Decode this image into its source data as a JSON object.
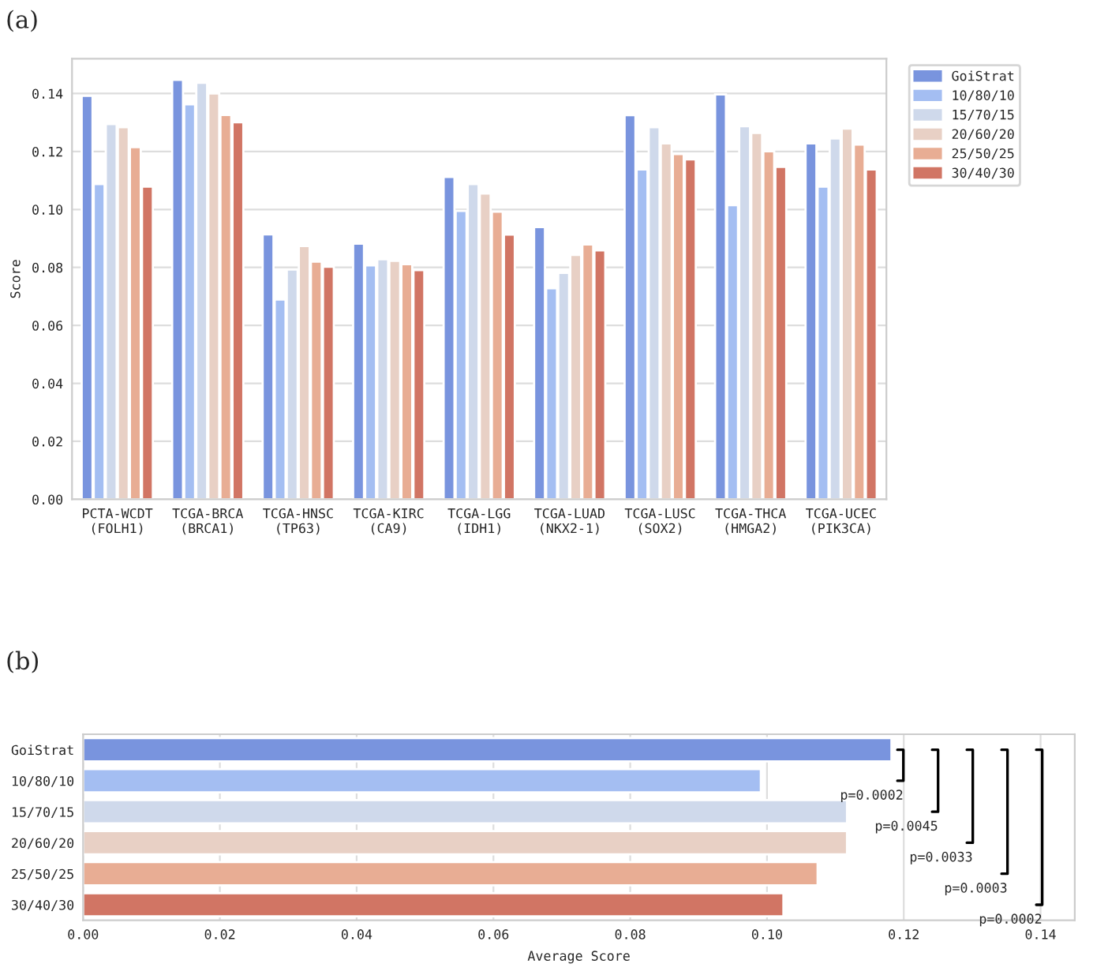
{
  "chart_data": [
    {
      "type": "bar",
      "title": "(a)",
      "ylabel": "Score",
      "categories": [
        "PCTA-WCDT\n(FOLH1)",
        "TCGA-BRCA\n(BRCA1)",
        "TCGA-HNSC\n(TP63)",
        "TCGA-KIRC\n(CA9)",
        "TCGA-LGG\n(IDH1)",
        "TCGA-LUAD\n(NKX2-1)",
        "TCGA-LUSC\n(SOX2)",
        "TCGA-THCA\n(HMGA2)",
        "TCGA-UCEC\n(PIK3CA)"
      ],
      "series": [
        {
          "name": "GoiStrat",
          "color": "#7994de",
          "values": [
            0.1392,
            0.1447,
            0.0914,
            0.0882,
            0.1112,
            0.0939,
            0.1325,
            0.1397,
            0.1228
          ]
        },
        {
          "name": "10/80/10",
          "color": "#a4bef2",
          "values": [
            0.1088,
            0.1363,
            0.0689,
            0.0807,
            0.0995,
            0.0728,
            0.1138,
            0.1015,
            0.1079
          ]
        },
        {
          "name": "15/70/15",
          "color": "#cfd9eb",
          "values": [
            0.1295,
            0.1437,
            0.0793,
            0.0828,
            0.1088,
            0.0781,
            0.1284,
            0.1287,
            0.1245
          ]
        },
        {
          "name": "20/60/20",
          "color": "#e8d0c5",
          "values": [
            0.1284,
            0.14,
            0.0874,
            0.0823,
            0.1055,
            0.0843,
            0.1228,
            0.1264,
            0.1279
          ]
        },
        {
          "name": "25/50/25",
          "color": "#e8ad94",
          "values": [
            0.1215,
            0.1326,
            0.082,
            0.0811,
            0.0992,
            0.0879,
            0.1191,
            0.1201,
            0.1224
          ]
        },
        {
          "name": "30/40/30",
          "color": "#d17564",
          "values": [
            0.1079,
            0.1301,
            0.0802,
            0.0791,
            0.0913,
            0.0859,
            0.1173,
            0.1147,
            0.1138
          ]
        }
      ],
      "ylim": [
        0,
        0.152
      ],
      "yticks": [
        {
          "value": 0,
          "label": "0.00"
        },
        {
          "value": 0.02,
          "label": "0.02"
        },
        {
          "value": 0.04,
          "label": "0.04"
        },
        {
          "value": 0.06,
          "label": "0.06"
        },
        {
          "value": 0.08,
          "label": "0.08"
        },
        {
          "value": 0.1,
          "label": "0.10"
        },
        {
          "value": 0.12,
          "label": "0.12"
        },
        {
          "value": 0.14,
          "label": "0.14"
        }
      ],
      "grid": "y",
      "legend": "top right"
    },
    {
      "type": "bar",
      "orientation": "horizontal",
      "title": "(b)",
      "xlabel": "Average Score",
      "categories": [
        "GoiStrat",
        "10/80/10",
        "15/70/15",
        "20/60/20",
        "25/50/25",
        "30/40/30"
      ],
      "values": [
        0.1182,
        0.0991,
        0.1117,
        0.1117,
        0.1074,
        0.1024
      ],
      "colors": [
        "#7994de",
        "#a4bef2",
        "#cfd9eb",
        "#e8d0c5",
        "#e8ad94",
        "#d17564"
      ],
      "xlim": [
        0,
        0.145
      ],
      "xticks": [
        {
          "value": 0,
          "label": "0.00"
        },
        {
          "value": 0.02,
          "label": "0.02"
        },
        {
          "value": 0.04,
          "label": "0.04"
        },
        {
          "value": 0.06,
          "label": "0.06"
        },
        {
          "value": 0.08,
          "label": "0.08"
        },
        {
          "value": 0.1,
          "label": "0.10"
        },
        {
          "value": 0.12,
          "label": "0.12"
        },
        {
          "value": 0.14,
          "label": "0.14"
        }
      ],
      "annotations": [
        "p=0.0002",
        "p=0.0045",
        "p=0.0033",
        "p=0.0003",
        "p=0.0002"
      ],
      "grid": "x"
    }
  ]
}
